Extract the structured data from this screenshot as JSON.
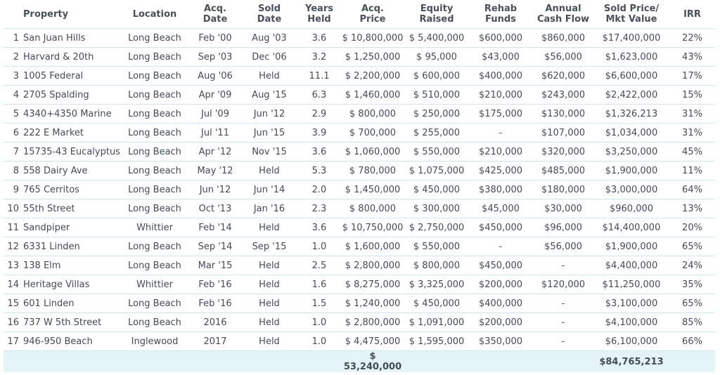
{
  "headers": {
    "property": "Property",
    "location": "Location",
    "acq_date": [
      "Acq.",
      "Date"
    ],
    "sold_date": [
      "Sold",
      "Date"
    ],
    "years_held": [
      "Years",
      "Held"
    ],
    "acq_price": [
      "Acq.",
      "Price"
    ],
    "equity": [
      "Equity",
      "Raised"
    ],
    "rehab": [
      "Rehab",
      "Funds"
    ],
    "cash_flow": [
      "Annual",
      "Cash Flow"
    ],
    "sold_price": [
      "Sold Price/",
      "Mkt Value"
    ],
    "irr": "IRR"
  },
  "rows": [
    {
      "num": "1",
      "property": "San Juan Hills",
      "location": "Long Beach",
      "acq_date": "Feb '00",
      "sold_date": "Aug '03",
      "years_held": "3.6",
      "acq_price": "$ 10,800,000",
      "equity": "$ 5,400,000",
      "rehab": "$600,000",
      "cash_flow": "$860,000",
      "sold_price": "$17,400,000",
      "irr": "22%"
    },
    {
      "num": "2",
      "property": "Harvard & 20th",
      "location": "Long Beach",
      "acq_date": "Sep '03",
      "sold_date": "Dec '06",
      "years_held": "3.2",
      "acq_price": "$ 1,250,000",
      "equity": "$ 95,000",
      "rehab": "$43,000",
      "cash_flow": "$56,000",
      "sold_price": "$1,623,000",
      "irr": "43%"
    },
    {
      "num": "3",
      "property": "1005 Federal",
      "location": "Long Beach",
      "acq_date": "Aug '06",
      "sold_date": "Held",
      "years_held": "11.1",
      "acq_price": "$ 2,200,000",
      "equity": "$ 600,000",
      "rehab": "$400,000",
      "cash_flow": "$620,000",
      "sold_price": "$6,600,000",
      "irr": "17%"
    },
    {
      "num": "4",
      "property": "2705 Spalding",
      "location": "Long Beach",
      "acq_date": "Apr '09",
      "sold_date": "Aug '15",
      "years_held": "6.3",
      "acq_price": "$ 1,460,000",
      "equity": "$ 510,000",
      "rehab": "$210,000",
      "cash_flow": "$243,000",
      "sold_price": "$2,422,000",
      "irr": "15%"
    },
    {
      "num": "5",
      "property": "4340+4350 Marine",
      "location": "Long Beach",
      "acq_date": "Jul '09",
      "sold_date": "Jun '12",
      "years_held": "2.9",
      "acq_price": "$ 800,000",
      "equity": "$ 250,000",
      "rehab": "$175,000",
      "cash_flow": "$130,000",
      "sold_price": "$1,326,213",
      "irr": "31%"
    },
    {
      "num": "6",
      "property": "222 E Market",
      "location": "Long Beach",
      "acq_date": "Jul '11",
      "sold_date": "Jun '15",
      "years_held": "3.9",
      "acq_price": "$ 700,000",
      "equity": "$ 255,000",
      "rehab": "-",
      "cash_flow": "$107,000",
      "sold_price": "$1,034,000",
      "irr": "31%"
    },
    {
      "num": "7",
      "property": "15735-43 Eucalyptus",
      "location": "Long Beach",
      "acq_date": "Apr '12",
      "sold_date": "Nov '15",
      "years_held": "3.6",
      "acq_price": "$ 1,060,000",
      "equity": "$ 550,000",
      "rehab": "$210,000",
      "cash_flow": "$320,000",
      "sold_price": "$3,250,000",
      "irr": "45%"
    },
    {
      "num": "8",
      "property": "558 Dairy Ave",
      "location": "Long Beach",
      "acq_date": "May '12",
      "sold_date": "Held",
      "years_held": "5.3",
      "acq_price": "$ 780,000",
      "equity": "$ 1,075,000",
      "rehab": "$425,000",
      "cash_flow": "$485,000",
      "sold_price": "$1,900,000",
      "irr": "11%"
    },
    {
      "num": "9",
      "property": "765 Cerritos",
      "location": "Long Beach",
      "acq_date": "Jun '12",
      "sold_date": "Jun '14",
      "years_held": "2.0",
      "acq_price": "$ 1,450,000",
      "equity": "$ 450,000",
      "rehab": "$380,000",
      "cash_flow": "$180,000",
      "sold_price": "$3,000,000",
      "irr": "64%"
    },
    {
      "num": "10",
      "property": "55th Street",
      "location": "Long Beach",
      "acq_date": "Oct '13",
      "sold_date": "Jan '16",
      "years_held": "2.3",
      "acq_price": "$ 800,000",
      "equity": "$ 300,000",
      "rehab": "$45,000",
      "cash_flow": "$30,000",
      "sold_price": "$960,000",
      "irr": "13%"
    },
    {
      "num": "11",
      "property": "Sandpiper",
      "location": "Whittier",
      "acq_date": "Feb '14",
      "sold_date": "Held",
      "years_held": "3.6",
      "acq_price": "$ 10,750,000",
      "equity": "$ 2,750,000",
      "rehab": "$450,000",
      "cash_flow": "$96,000",
      "sold_price": "$14,400,000",
      "irr": "20%"
    },
    {
      "num": "12",
      "property": "6331 Linden",
      "location": "Long Beach",
      "acq_date": "Sep '14",
      "sold_date": "Sep '15",
      "years_held": "1.0",
      "acq_price": "$ 1,600,000",
      "equity": "$ 550,000",
      "rehab": "-",
      "cash_flow": "$56,000",
      "sold_price": "$1,900,000",
      "irr": "65%"
    },
    {
      "num": "13",
      "property": "138 Elm",
      "location": "Long Beach",
      "acq_date": "Mar '15",
      "sold_date": "Held",
      "years_held": "2.5",
      "acq_price": "$ 2,800,000",
      "equity": "$ 800,000",
      "rehab": "$450,000",
      "cash_flow": "-",
      "sold_price": "$4,400,000",
      "irr": "24%"
    },
    {
      "num": "14",
      "property": "Heritage Villas",
      "location": "Whittier",
      "acq_date": "Feb '16",
      "sold_date": "Held",
      "years_held": "1.6",
      "acq_price": "$ 8,275,000",
      "equity": "$ 3,325,000",
      "rehab": "$200,000",
      "cash_flow": "$120,000",
      "sold_price": "$11,250,000",
      "irr": "35%"
    },
    {
      "num": "15",
      "property": "601 Linden",
      "location": "Long Beach",
      "acq_date": "Feb '16",
      "sold_date": "Held",
      "years_held": "1.5",
      "acq_price": "$ 1,240,000",
      "equity": "$ 450,000",
      "rehab": "$400,000",
      "cash_flow": "-",
      "sold_price": "$3,100,000",
      "irr": "65%"
    },
    {
      "num": "16",
      "property": "737 W 5th Street",
      "location": "Long Beach",
      "acq_date": "2016",
      "sold_date": "Held",
      "years_held": "1.0",
      "acq_price": "$ 2,800,000",
      "equity": "$ 1,091,000",
      "rehab": "$200,000",
      "cash_flow": "-",
      "sold_price": "$4,100,000",
      "irr": "85%"
    },
    {
      "num": "17",
      "property": "946-950 Beach",
      "location": "Inglewood",
      "acq_date": "2017",
      "sold_date": "Held",
      "years_held": "1.0",
      "acq_price": "$ 4,475,000",
      "equity": "$ 1,595,000",
      "rehab": "$350,000",
      "cash_flow": "-",
      "sold_price": "$6,100,000",
      "irr": "66%"
    }
  ],
  "totals": {
    "acq_price": "$ 53,240,000",
    "sold_price": "$84,765,213"
  },
  "colors": {
    "header_text": "#4a4f58",
    "row_border": "#cfe7ec",
    "total_background": "#e4f4f7"
  }
}
